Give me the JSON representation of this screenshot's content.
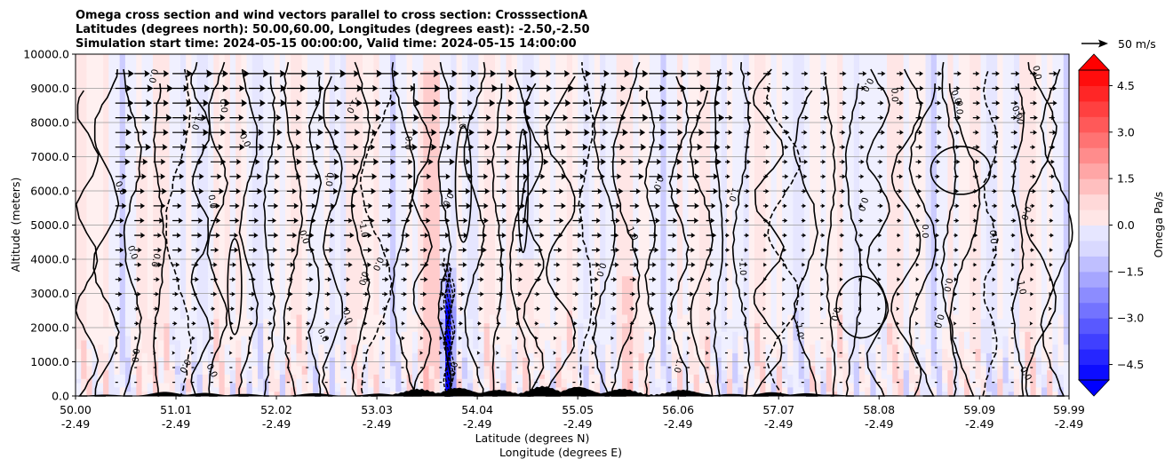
{
  "chart_data": {
    "type": "contour",
    "title_lines": [
      "Omega cross section and wind vectors parallel to cross section: CrosssectionA",
      "Latitudes (degrees north): 50.00,60.00, Longitudes (degrees east): -2.50,-2.50",
      "Simulation start time: 2024-05-15 00:00:00, Valid time: 2024-05-15 14:00:00"
    ],
    "xlabel": "Latitude (degrees N)",
    "xlabel2": "Longitude (degrees E)",
    "ylabel": "Altitude (meters)",
    "xlim": [
      50.0,
      59.99
    ],
    "ylim": [
      0,
      10000
    ],
    "x_ticks": [
      {
        "lat": "50.00",
        "lon": "-2.49",
        "v": 50.0
      },
      {
        "lat": "51.01",
        "lon": "-2.49",
        "v": 51.01
      },
      {
        "lat": "52.02",
        "lon": "-2.49",
        "v": 52.02
      },
      {
        "lat": "53.03",
        "lon": "-2.49",
        "v": 53.03
      },
      {
        "lat": "54.04",
        "lon": "-2.49",
        "v": 54.04
      },
      {
        "lat": "55.05",
        "lon": "-2.49",
        "v": 55.05
      },
      {
        "lat": "56.06",
        "lon": "-2.49",
        "v": 56.06
      },
      {
        "lat": "57.07",
        "lon": "-2.49",
        "v": 57.07
      },
      {
        "lat": "58.08",
        "lon": "-2.49",
        "v": 58.08
      },
      {
        "lat": "59.09",
        "lon": "-2.49",
        "v": 59.09
      },
      {
        "lat": "59.99",
        "lon": "-2.49",
        "v": 59.99
      }
    ],
    "y_ticks": [
      {
        "label": "0.0",
        "v": 0
      },
      {
        "label": "1000.0",
        "v": 1000
      },
      {
        "label": "2000.0",
        "v": 2000
      },
      {
        "label": "3000.0",
        "v": 3000
      },
      {
        "label": "4000.0",
        "v": 4000
      },
      {
        "label": "5000.0",
        "v": 5000
      },
      {
        "label": "6000.0",
        "v": 6000
      },
      {
        "label": "7000.0",
        "v": 7000
      },
      {
        "label": "8000.0",
        "v": 8000
      },
      {
        "label": "9000.0",
        "v": 9000
      },
      {
        "label": "10000.0",
        "v": 10000
      }
    ],
    "colorbar": {
      "label": "Omega Pa/s",
      "range": [
        -5,
        5
      ],
      "levels": 20,
      "ticks": [
        {
          "label": "4.5",
          "v": 4.5
        },
        {
          "label": "3.0",
          "v": 3.0
        },
        {
          "label": "1.5",
          "v": 1.5
        },
        {
          "label": "0.0",
          "v": 0.0
        },
        {
          "label": "−1.5",
          "v": -1.5
        },
        {
          "label": "−3.0",
          "v": -3.0
        },
        {
          "label": "−4.5",
          "v": -4.5
        }
      ],
      "colormap": "bwr"
    },
    "quiver_key": {
      "label": "50 m/s",
      "speed": 50
    },
    "contour_labels": [
      "0.0",
      "-1.0",
      "1.0"
    ],
    "features": [
      {
        "name": "strong-descent-band",
        "lat": 53.75,
        "alt_top": 4000,
        "omega_min": -5.0
      },
      {
        "name": "updraft-column",
        "lat": 53.55,
        "alt_top": 9500,
        "omega": 1.2
      },
      {
        "name": "updraft-column",
        "lat": 54.55,
        "alt_top": 4000,
        "omega": 1.5
      },
      {
        "name": "updraft-column",
        "lat": 55.6,
        "alt_top": 3500,
        "omega": 1.0
      },
      {
        "name": "updraft-column",
        "lat": 50.7,
        "alt_top": 7000,
        "omega": 0.8
      }
    ]
  },
  "colors": {
    "neg_max": "#0000ff",
    "pos_max": "#ff0000",
    "neutral": "#ffffff",
    "contour": "#000000",
    "terrain": "#000000"
  }
}
